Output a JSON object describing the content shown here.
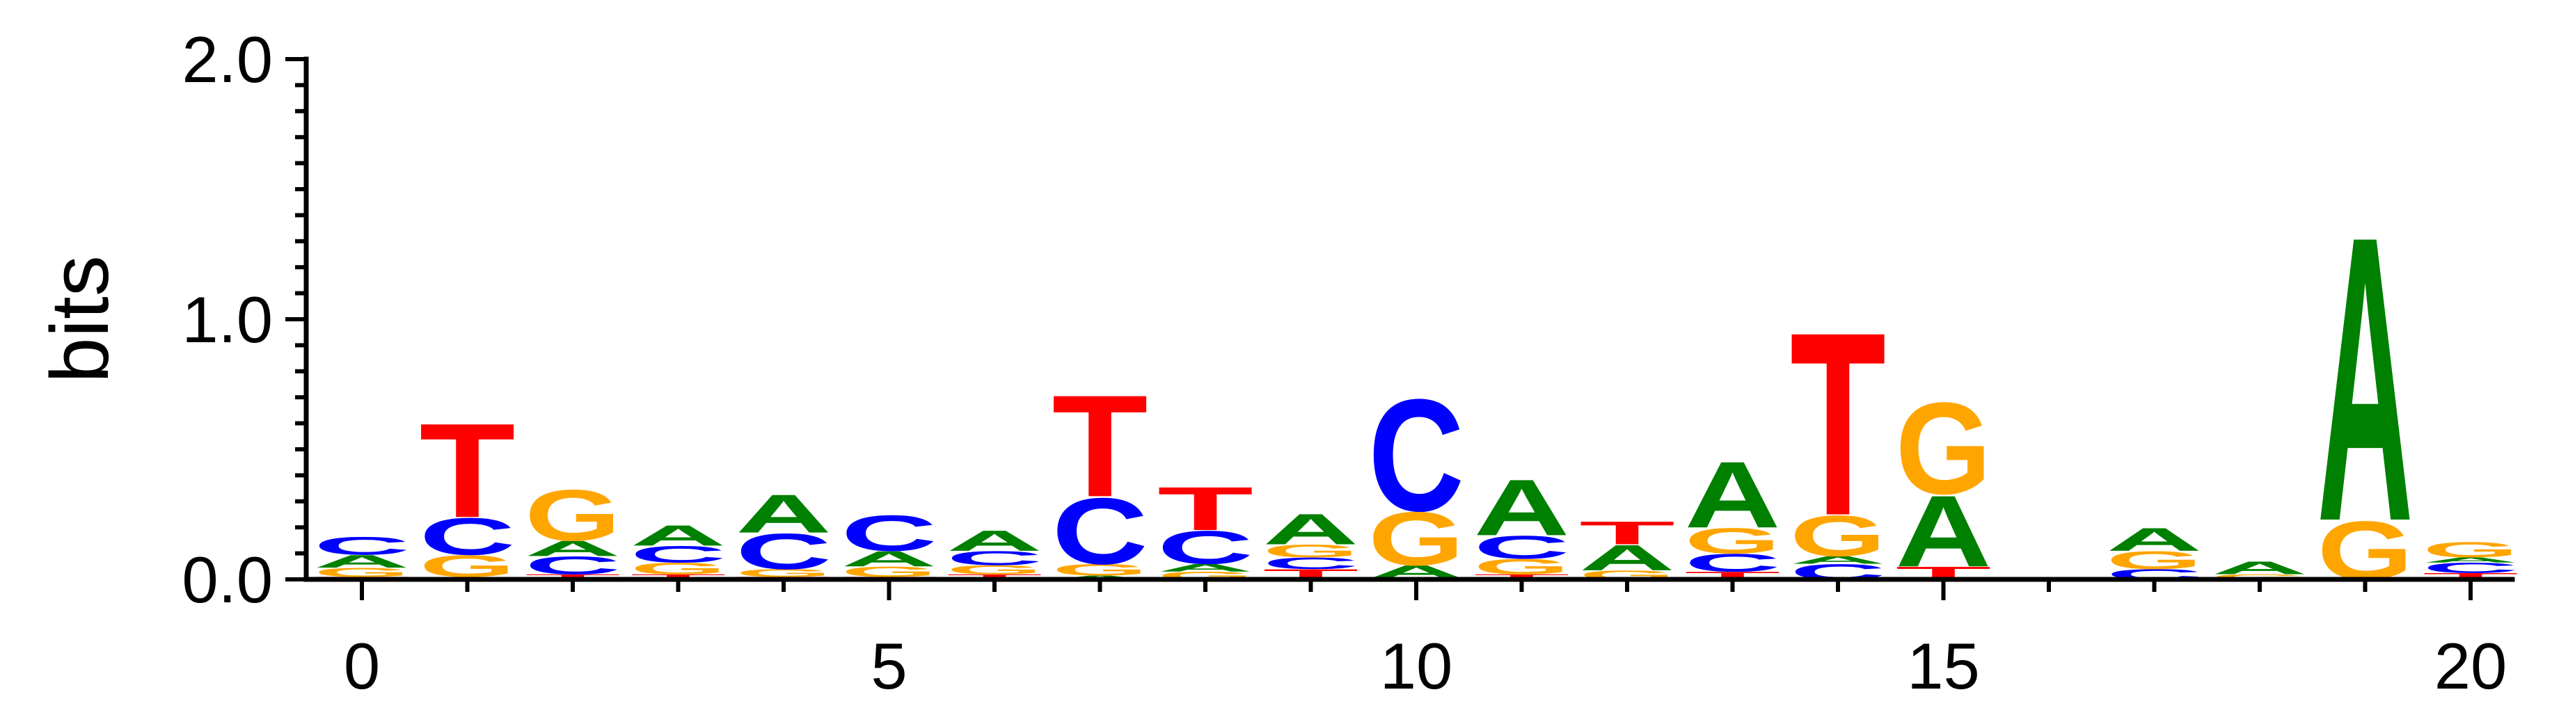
{
  "colors": {
    "A": "#008000",
    "C": "#0000ff",
    "G": "#ffa500",
    "T": "#ff0000"
  },
  "chart_data": {
    "type": "sequence_logo",
    "title": "",
    "xlabel": "",
    "ylabel": "bits",
    "ylim": [
      0,
      2.0
    ],
    "xlim": [
      -0.5,
      20.5
    ],
    "yticks_major": [
      0,
      1.0,
      2.0
    ],
    "ytick_labels": [
      "0.0",
      "1.0",
      "2.0"
    ],
    "yticks_minor": [
      0.1,
      0.2,
      0.3,
      0.4,
      0.5,
      0.6,
      0.7,
      0.8,
      0.9,
      1.1,
      1.2,
      1.3,
      1.4,
      1.5,
      1.6,
      1.7,
      1.8,
      1.9
    ],
    "xticks_major": [
      0,
      5,
      10,
      15,
      20
    ],
    "xtick_labels": [
      "0",
      "5",
      "10",
      "15",
      "20"
    ],
    "grid": false,
    "positions": [
      {
        "pos": 0,
        "stack": [
          {
            "letter": "T",
            "height": 0.01
          },
          {
            "letter": "G",
            "height": 0.035
          },
          {
            "letter": "A",
            "height": 0.05
          },
          {
            "letter": "C",
            "height": 0.07
          }
        ]
      },
      {
        "pos": 1,
        "stack": [
          {
            "letter": "A",
            "height": 0.01
          },
          {
            "letter": "G",
            "height": 0.085
          },
          {
            "letter": "C",
            "height": 0.145
          },
          {
            "letter": "T",
            "height": 0.37
          }
        ]
      },
      {
        "pos": 2,
        "stack": [
          {
            "letter": "T",
            "height": 0.02
          },
          {
            "letter": "C",
            "height": 0.07
          },
          {
            "letter": "A",
            "height": 0.06
          },
          {
            "letter": "G",
            "height": 0.2
          }
        ]
      },
      {
        "pos": 3,
        "stack": [
          {
            "letter": "T",
            "height": 0.02
          },
          {
            "letter": "G",
            "height": 0.045
          },
          {
            "letter": "C",
            "height": 0.065
          },
          {
            "letter": "A",
            "height": 0.08
          }
        ]
      },
      {
        "pos": 4,
        "stack": [
          {
            "letter": "T",
            "height": 0.01
          },
          {
            "letter": "G",
            "height": 0.03
          },
          {
            "letter": "C",
            "height": 0.14
          },
          {
            "letter": "A",
            "height": 0.15
          }
        ]
      },
      {
        "pos": 5,
        "stack": [
          {
            "letter": "T",
            "height": 0.01
          },
          {
            "letter": "G",
            "height": 0.04
          },
          {
            "letter": "A",
            "height": 0.06
          },
          {
            "letter": "C",
            "height": 0.14
          }
        ]
      },
      {
        "pos": 6,
        "stack": [
          {
            "letter": "T",
            "height": 0.02
          },
          {
            "letter": "G",
            "height": 0.035
          },
          {
            "letter": "C",
            "height": 0.055
          },
          {
            "letter": "A",
            "height": 0.08
          }
        ]
      },
      {
        "pos": 7,
        "stack": [
          {
            "letter": "A",
            "height": 0.015
          },
          {
            "letter": "G",
            "height": 0.045
          },
          {
            "letter": "C",
            "height": 0.26
          },
          {
            "letter": "T",
            "height": 0.4
          }
        ]
      },
      {
        "pos": 8,
        "stack": [
          {
            "letter": "G",
            "height": 0.03
          },
          {
            "letter": "A",
            "height": 0.03
          },
          {
            "letter": "C",
            "height": 0.13
          },
          {
            "letter": "T",
            "height": 0.17
          }
        ]
      },
      {
        "pos": 9,
        "stack": [
          {
            "letter": "T",
            "height": 0.04
          },
          {
            "letter": "C",
            "height": 0.045
          },
          {
            "letter": "G",
            "height": 0.05
          },
          {
            "letter": "A",
            "height": 0.12
          }
        ]
      },
      {
        "pos": 10,
        "stack": [
          {
            "letter": "T",
            "height": 0.005
          },
          {
            "letter": "A",
            "height": 0.05
          },
          {
            "letter": "G",
            "height": 0.21
          },
          {
            "letter": "C",
            "height": 0.44
          }
        ]
      },
      {
        "pos": 11,
        "stack": [
          {
            "letter": "T",
            "height": 0.02
          },
          {
            "letter": "G",
            "height": 0.06
          },
          {
            "letter": "C",
            "height": 0.09
          },
          {
            "letter": "A",
            "height": 0.22
          }
        ]
      },
      {
        "pos": 12,
        "stack": [
          {
            "letter": "G",
            "height": 0.035
          },
          {
            "letter": "A",
            "height": 0.1
          },
          {
            "letter": "T",
            "height": 0.09
          }
        ]
      },
      {
        "pos": 13,
        "stack": [
          {
            "letter": "T",
            "height": 0.03
          },
          {
            "letter": "C",
            "height": 0.07
          },
          {
            "letter": "G",
            "height": 0.1
          },
          {
            "letter": "A",
            "height": 0.26
          }
        ]
      },
      {
        "pos": 14,
        "stack": [
          {
            "letter": "C",
            "height": 0.06
          },
          {
            "letter": "A",
            "height": 0.03
          },
          {
            "letter": "G",
            "height": 0.16
          },
          {
            "letter": "T",
            "height": 0.72
          }
        ]
      },
      {
        "pos": 15,
        "stack": [
          {
            "letter": "T",
            "height": 0.05
          },
          {
            "letter": "A",
            "height": 0.28
          },
          {
            "letter": "G",
            "height": 0.36
          }
        ]
      },
      {
        "pos": 16,
        "stack": []
      },
      {
        "pos": 17,
        "stack": [
          {
            "letter": "C",
            "height": 0.04
          },
          {
            "letter": "G",
            "height": 0.07
          },
          {
            "letter": "A",
            "height": 0.09
          }
        ]
      },
      {
        "pos": 18,
        "stack": [
          {
            "letter": "G",
            "height": 0.02
          },
          {
            "letter": "A",
            "height": 0.05
          }
        ]
      },
      {
        "pos": 19,
        "stack": [
          {
            "letter": "G",
            "height": 0.23
          },
          {
            "letter": "A",
            "height": 1.12
          }
        ]
      },
      {
        "pos": 20,
        "stack": [
          {
            "letter": "T",
            "height": 0.025
          },
          {
            "letter": "C",
            "height": 0.04
          },
          {
            "letter": "A",
            "height": 0.02
          },
          {
            "letter": "G",
            "height": 0.06
          }
        ]
      }
    ]
  }
}
